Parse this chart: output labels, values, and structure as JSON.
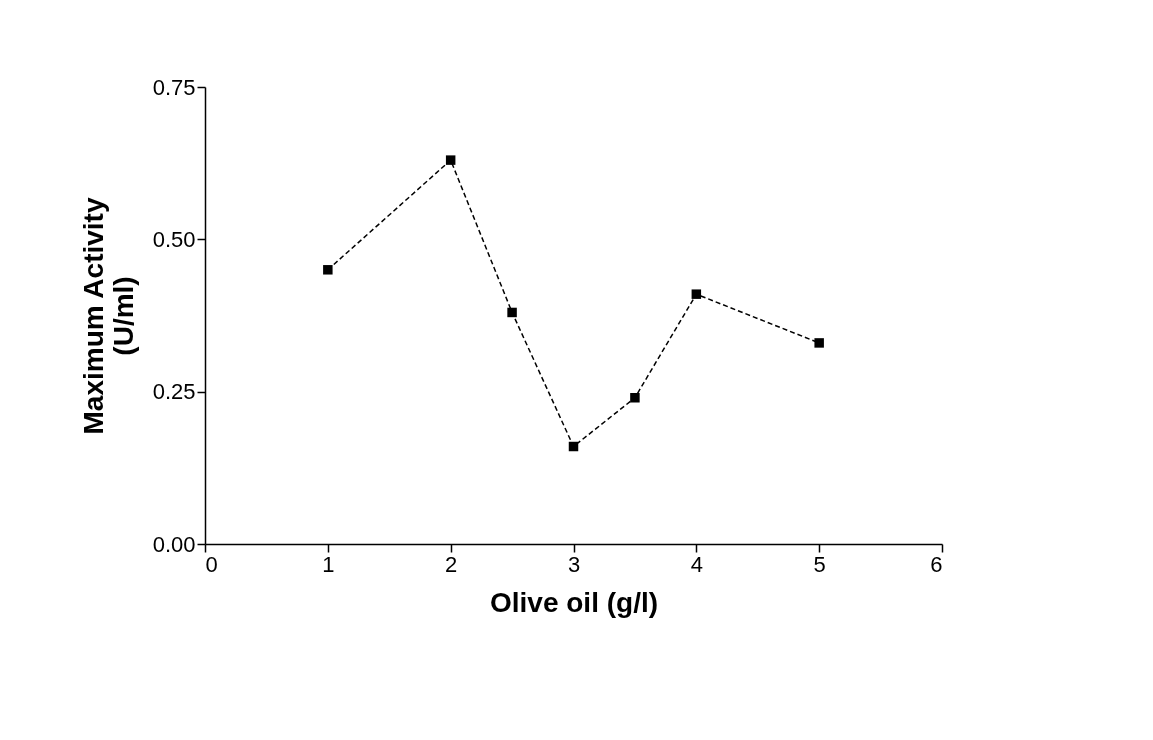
{
  "chart_data": {
    "type": "line",
    "xlabel": "Olive oil (g/l)",
    "ylabel": "Maximum Activity\n(U/ml)",
    "x": [
      1,
      2,
      2.5,
      3,
      3.5,
      4,
      5
    ],
    "series": [
      {
        "color": "#000000",
        "values": [
          0.45,
          0.63,
          0.38,
          0.16,
          0.24,
          0.41,
          0.33
        ]
      }
    ],
    "xlim": [
      0,
      6
    ],
    "xticks": [
      0,
      1,
      2,
      3,
      4,
      5,
      6
    ],
    "ylim": [
      0,
      0.75
    ],
    "yticks": [
      {
        "value": 0,
        "label": "0.00"
      },
      {
        "value": 0.25,
        "label": "0.25"
      },
      {
        "value": 0.5,
        "label": "0.50"
      },
      {
        "value": 0.75,
        "label": "0.75"
      }
    ],
    "grid": false,
    "marker": "square",
    "line_style": "dashed",
    "legend": false
  }
}
